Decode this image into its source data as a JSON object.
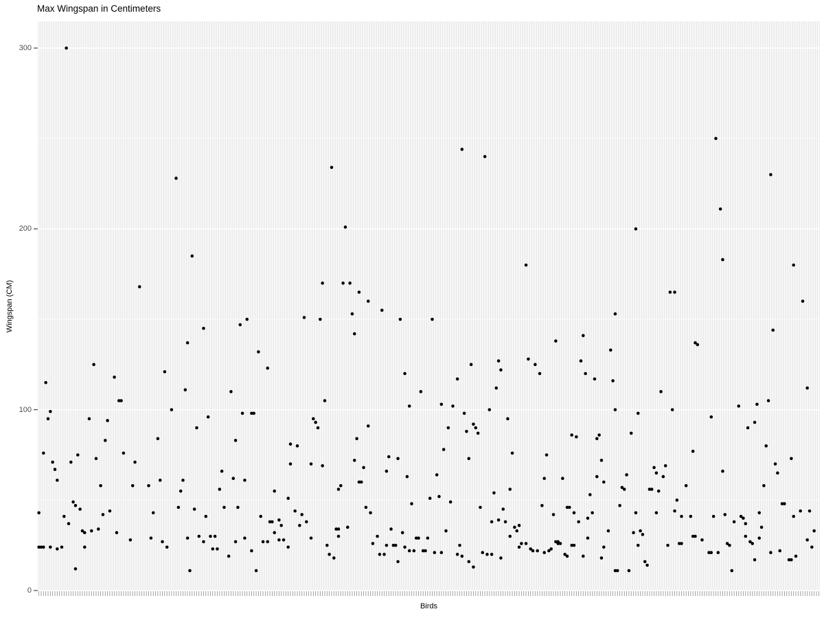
{
  "chart_data": {
    "type": "scatter",
    "title": "Max Wingspan in Centimeters",
    "xlabel": "Birds",
    "ylabel": "Wingspan (CM)",
    "y_tick_labels": [
      "0",
      "100",
      "200",
      "300"
    ],
    "y_ticks": [
      0,
      100,
      200,
      300
    ],
    "y_minor_gridlines": [
      50,
      150,
      250
    ],
    "ylim": [
      0,
      315
    ],
    "x_categories_count": 342,
    "x_tick_labels_shown": false,
    "legend": "none",
    "grid": "on",
    "panel_bg": "#EBEBEB",
    "gridline_color": "#FFFFFF",
    "point_color": "#000000",
    "axis_tick_color": "#333333",
    "x_tick_color": "#8a8a8a",
    "tick_label_color": "#4D4D4D",
    "points": [
      [
        12,
        300
      ],
      [
        60,
        228
      ],
      [
        67,
        185
      ],
      [
        44,
        168
      ],
      [
        185,
        244
      ],
      [
        195,
        240
      ],
      [
        128,
        234
      ],
      [
        134,
        201
      ],
      [
        213,
        180
      ],
      [
        124,
        170
      ],
      [
        133,
        170
      ],
      [
        136,
        170
      ],
      [
        140,
        165
      ],
      [
        144,
        160
      ],
      [
        296,
        250
      ],
      [
        320,
        230
      ],
      [
        298,
        211
      ],
      [
        261,
        200
      ],
      [
        299,
        183
      ],
      [
        330,
        180
      ],
      [
        276,
        165
      ],
      [
        278,
        165
      ],
      [
        334,
        160
      ],
      [
        91,
        150
      ],
      [
        88,
        147
      ],
      [
        72,
        145
      ],
      [
        65,
        137
      ],
      [
        96,
        132
      ],
      [
        24,
        125
      ],
      [
        100,
        123
      ],
      [
        55,
        121
      ],
      [
        33,
        118
      ],
      [
        3,
        115
      ],
      [
        64,
        111
      ],
      [
        84,
        110
      ],
      [
        35,
        105
      ],
      [
        36,
        105
      ],
      [
        58,
        100
      ],
      [
        5,
        99
      ],
      [
        89,
        98
      ],
      [
        93,
        98
      ],
      [
        94,
        98
      ],
      [
        74,
        96
      ],
      [
        4,
        95
      ],
      [
        22,
        95
      ],
      [
        30,
        94
      ],
      [
        69,
        90
      ],
      [
        52,
        84
      ],
      [
        29,
        83
      ],
      [
        86,
        83
      ],
      [
        110,
        81
      ],
      [
        2,
        76
      ],
      [
        37,
        76
      ],
      [
        17,
        75
      ],
      [
        25,
        73
      ],
      [
        6,
        71
      ],
      [
        14,
        71
      ],
      [
        42,
        71
      ],
      [
        110,
        70
      ],
      [
        7,
        67
      ],
      [
        80,
        66
      ],
      [
        85,
        62
      ],
      [
        8,
        61
      ],
      [
        53,
        61
      ],
      [
        63,
        61
      ],
      [
        90,
        61
      ],
      [
        27,
        58
      ],
      [
        41,
        58
      ],
      [
        48,
        58
      ],
      [
        62,
        55
      ],
      [
        79,
        56
      ],
      [
        103,
        55
      ],
      [
        109,
        51
      ],
      [
        15,
        49
      ],
      [
        16,
        47
      ],
      [
        18,
        45
      ],
      [
        31,
        44
      ],
      [
        0,
        43
      ],
      [
        50,
        43
      ],
      [
        11,
        41
      ],
      [
        28,
        42
      ],
      [
        61,
        46
      ],
      [
        68,
        45
      ],
      [
        73,
        41
      ],
      [
        81,
        46
      ],
      [
        87,
        46
      ],
      [
        97,
        41
      ],
      [
        101,
        38
      ],
      [
        102,
        38
      ],
      [
        13,
        37
      ],
      [
        105,
        39
      ],
      [
        106,
        36
      ],
      [
        26,
        34
      ],
      [
        19,
        33
      ],
      [
        23,
        33
      ],
      [
        20,
        32
      ],
      [
        34,
        32
      ],
      [
        40,
        28
      ],
      [
        49,
        29
      ],
      [
        54,
        27
      ],
      [
        56,
        24
      ],
      [
        65,
        29
      ],
      [
        70,
        30
      ],
      [
        75,
        30
      ],
      [
        77,
        30
      ],
      [
        72,
        27
      ],
      [
        76,
        23
      ],
      [
        78,
        23
      ],
      [
        83,
        19
      ],
      [
        86,
        27
      ],
      [
        90,
        29
      ],
      [
        93,
        22
      ],
      [
        98,
        27
      ],
      [
        100,
        27
      ],
      [
        103,
        32
      ],
      [
        105,
        28
      ],
      [
        107,
        28
      ],
      [
        109,
        24
      ],
      [
        0,
        24
      ],
      [
        1,
        24
      ],
      [
        2,
        24
      ],
      [
        5,
        24
      ],
      [
        8,
        23
      ],
      [
        10,
        24
      ],
      [
        20,
        24
      ],
      [
        16,
        12
      ],
      [
        66,
        11
      ],
      [
        95,
        11
      ],
      [
        150,
        155
      ],
      [
        137,
        153
      ],
      [
        116,
        151
      ],
      [
        123,
        150
      ],
      [
        158,
        150
      ],
      [
        172,
        150
      ],
      [
        138,
        142
      ],
      [
        226,
        138
      ],
      [
        214,
        128
      ],
      [
        201,
        127
      ],
      [
        189,
        125
      ],
      [
        217,
        125
      ],
      [
        202,
        122
      ],
      [
        160,
        120
      ],
      [
        219,
        120
      ],
      [
        183,
        117
      ],
      [
        200,
        112
      ],
      [
        167,
        110
      ],
      [
        125,
        105
      ],
      [
        176,
        103
      ],
      [
        162,
        102
      ],
      [
        181,
        102
      ],
      [
        197,
        100
      ],
      [
        186,
        98
      ],
      [
        120,
        95
      ],
      [
        205,
        95
      ],
      [
        121,
        93
      ],
      [
        190,
        92
      ],
      [
        144,
        91
      ],
      [
        122,
        90
      ],
      [
        179,
        90
      ],
      [
        191,
        90
      ],
      [
        187,
        88
      ],
      [
        192,
        87
      ],
      [
        139,
        84
      ],
      [
        113,
        80
      ],
      [
        177,
        78
      ],
      [
        207,
        76
      ],
      [
        222,
        75
      ],
      [
        153,
        74
      ],
      [
        157,
        73
      ],
      [
        188,
        73
      ],
      [
        138,
        72
      ],
      [
        119,
        70
      ],
      [
        124,
        69
      ],
      [
        142,
        68
      ],
      [
        152,
        66
      ],
      [
        174,
        64
      ],
      [
        161,
        63
      ],
      [
        221,
        62
      ],
      [
        140,
        60
      ],
      [
        141,
        60
      ],
      [
        132,
        58
      ],
      [
        131,
        56
      ],
      [
        206,
        56
      ],
      [
        199,
        54
      ],
      [
        175,
        52
      ],
      [
        171,
        51
      ],
      [
        180,
        49
      ],
      [
        163,
        48
      ],
      [
        143,
        46
      ],
      [
        193,
        46
      ],
      [
        203,
        45
      ],
      [
        112,
        44
      ],
      [
        145,
        43
      ],
      [
        115,
        42
      ],
      [
        114,
        36
      ],
      [
        117,
        38
      ],
      [
        198,
        38
      ],
      [
        204,
        38
      ],
      [
        201,
        39
      ],
      [
        208,
        35
      ],
      [
        210,
        36
      ],
      [
        209,
        33
      ],
      [
        178,
        33
      ],
      [
        135,
        35
      ],
      [
        130,
        34
      ],
      [
        131,
        34
      ],
      [
        154,
        34
      ],
      [
        159,
        32
      ],
      [
        119,
        29
      ],
      [
        165,
        29
      ],
      [
        166,
        29
      ],
      [
        170,
        29
      ],
      [
        131,
        30
      ],
      [
        148,
        30
      ],
      [
        206,
        30
      ],
      [
        146,
        26
      ],
      [
        155,
        25
      ],
      [
        156,
        25
      ],
      [
        126,
        25
      ],
      [
        152,
        25
      ],
      [
        184,
        25
      ],
      [
        160,
        24
      ],
      [
        210,
        24
      ],
      [
        224,
        23
      ],
      [
        215,
        23
      ],
      [
        162,
        22
      ],
      [
        164,
        22
      ],
      [
        168,
        22
      ],
      [
        169,
        22
      ],
      [
        216,
        22
      ],
      [
        218,
        22
      ],
      [
        223,
        22
      ],
      [
        173,
        21
      ],
      [
        176,
        21
      ],
      [
        194,
        21
      ],
      [
        221,
        21
      ],
      [
        127,
        20
      ],
      [
        149,
        20
      ],
      [
        151,
        20
      ],
      [
        183,
        20
      ],
      [
        196,
        20
      ],
      [
        198,
        20
      ],
      [
        185,
        19
      ],
      [
        129,
        18
      ],
      [
        202,
        18
      ],
      [
        157,
        16
      ],
      [
        188,
        16
      ],
      [
        190,
        13
      ],
      [
        220,
        47
      ],
      [
        225,
        42
      ],
      [
        226,
        27
      ],
      [
        227,
        27
      ],
      [
        211,
        26
      ],
      [
        213,
        26
      ],
      [
        252,
        153
      ],
      [
        321,
        144
      ],
      [
        238,
        141
      ],
      [
        287,
        137
      ],
      [
        288,
        136
      ],
      [
        250,
        133
      ],
      [
        237,
        127
      ],
      [
        239,
        120
      ],
      [
        243,
        117
      ],
      [
        251,
        116
      ],
      [
        336,
        112
      ],
      [
        272,
        110
      ],
      [
        319,
        105
      ],
      [
        314,
        103
      ],
      [
        306,
        102
      ],
      [
        252,
        100
      ],
      [
        277,
        100
      ],
      [
        262,
        98
      ],
      [
        294,
        96
      ],
      [
        313,
        93
      ],
      [
        310,
        90
      ],
      [
        259,
        87
      ],
      [
        233,
        86
      ],
      [
        245,
        86
      ],
      [
        235,
        85
      ],
      [
        244,
        84
      ],
      [
        318,
        80
      ],
      [
        286,
        77
      ],
      [
        329,
        73
      ],
      [
        246,
        72
      ],
      [
        322,
        70
      ],
      [
        274,
        69
      ],
      [
        269,
        68
      ],
      [
        299,
        66
      ],
      [
        323,
        65
      ],
      [
        270,
        65
      ],
      [
        257,
        64
      ],
      [
        273,
        63
      ],
      [
        244,
        63
      ],
      [
        229,
        62
      ],
      [
        247,
        60
      ],
      [
        317,
        58
      ],
      [
        283,
        58
      ],
      [
        255,
        57
      ],
      [
        256,
        56
      ],
      [
        267,
        56
      ],
      [
        268,
        56
      ],
      [
        271,
        55
      ],
      [
        241,
        53
      ],
      [
        279,
        50
      ],
      [
        325,
        48
      ],
      [
        326,
        48
      ],
      [
        254,
        47
      ],
      [
        231,
        46
      ],
      [
        232,
        46
      ],
      [
        278,
        44
      ],
      [
        333,
        44
      ],
      [
        337,
        44
      ],
      [
        234,
        43
      ],
      [
        242,
        43
      ],
      [
        261,
        43
      ],
      [
        270,
        43
      ],
      [
        315,
        43
      ],
      [
        300,
        42
      ],
      [
        307,
        41
      ],
      [
        281,
        41
      ],
      [
        285,
        41
      ],
      [
        295,
        41
      ],
      [
        330,
        41
      ],
      [
        240,
        40
      ],
      [
        308,
        40
      ],
      [
        236,
        38
      ],
      [
        304,
        38
      ],
      [
        309,
        37
      ],
      [
        316,
        35
      ],
      [
        339,
        33
      ],
      [
        249,
        33
      ],
      [
        263,
        33
      ],
      [
        260,
        32
      ],
      [
        264,
        31
      ],
      [
        240,
        29
      ],
      [
        315,
        29
      ],
      [
        286,
        30
      ],
      [
        287,
        30
      ],
      [
        309,
        30
      ],
      [
        290,
        28
      ],
      [
        336,
        28
      ],
      [
        311,
        27
      ],
      [
        301,
        26
      ],
      [
        312,
        26
      ],
      [
        280,
        26
      ],
      [
        281,
        26
      ],
      [
        227,
        26
      ],
      [
        228,
        26
      ],
      [
        302,
        25
      ],
      [
        233,
        25
      ],
      [
        234,
        25
      ],
      [
        275,
        25
      ],
      [
        262,
        25
      ],
      [
        247,
        24
      ],
      [
        338,
        24
      ],
      [
        324,
        22
      ],
      [
        320,
        21
      ],
      [
        293,
        21
      ],
      [
        294,
        21
      ],
      [
        297,
        21
      ],
      [
        230,
        20
      ],
      [
        231,
        19
      ],
      [
        238,
        19
      ],
      [
        331,
        19
      ],
      [
        246,
        18
      ],
      [
        328,
        17
      ],
      [
        329,
        17
      ],
      [
        313,
        17
      ],
      [
        265,
        16
      ],
      [
        266,
        14
      ],
      [
        252,
        11
      ],
      [
        253,
        11
      ],
      [
        258,
        11
      ],
      [
        303,
        11
      ]
    ]
  }
}
